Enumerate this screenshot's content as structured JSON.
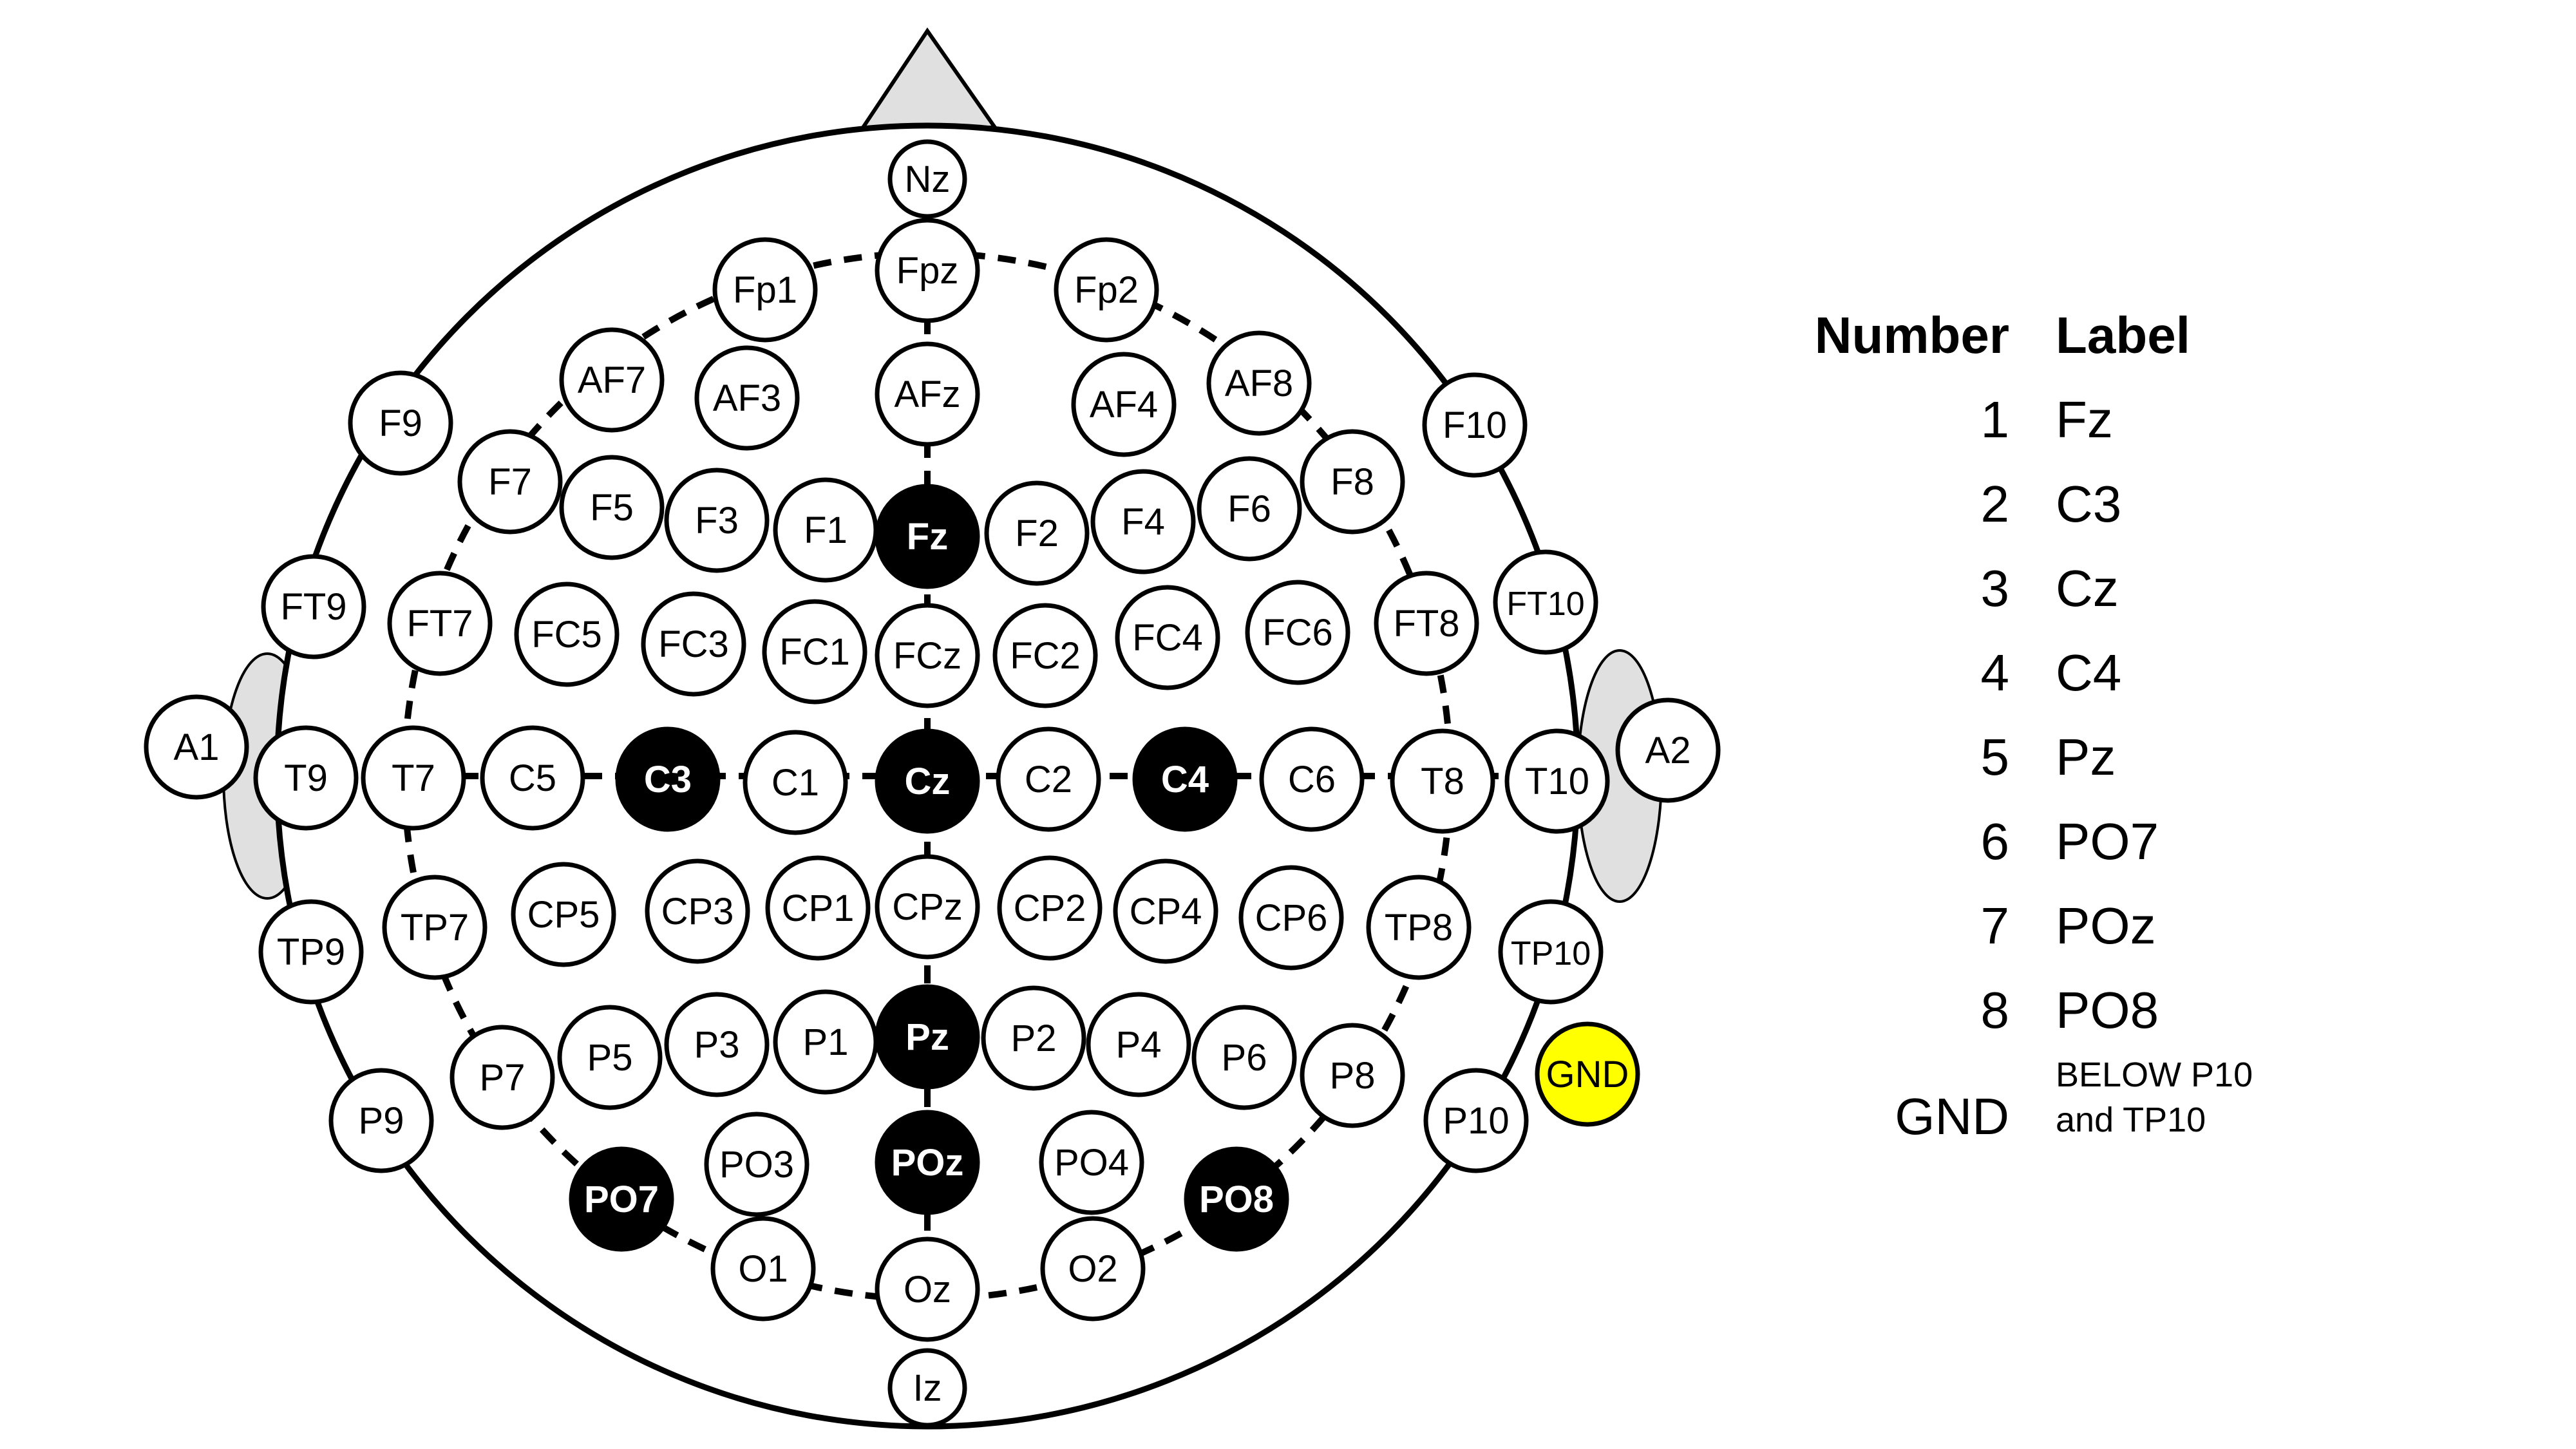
{
  "legend": {
    "header_number": "Number",
    "header_label": "Label",
    "rows": [
      {
        "number": "1",
        "label": "Fz"
      },
      {
        "number": "2",
        "label": "C3"
      },
      {
        "number": "3",
        "label": "Cz"
      },
      {
        "number": "4",
        "label": "C4"
      },
      {
        "number": "5",
        "label": "Pz"
      },
      {
        "number": "6",
        "label": "PO7"
      },
      {
        "number": "7",
        "label": "POz"
      },
      {
        "number": "8",
        "label": "PO8"
      }
    ],
    "gnd_number": "GND",
    "gnd_label": "BELOW P10 and TP10"
  },
  "colors": {
    "outline": "#000000",
    "ear_fill": "#e0e0e0",
    "nose_fill": "#e0e0e0",
    "electrode_fill": "#ffffff",
    "active_fill": "#000000",
    "ground_fill": "#ffff00"
  },
  "electrodes": {
    "Nz": "Nz",
    "Fpz": "Fpz",
    "Fp1": "Fp1",
    "Fp2": "Fp2",
    "AF7": "AF7",
    "AF3": "AF3",
    "AFz": "AFz",
    "AF4": "AF4",
    "AF8": "AF8",
    "F9": "F9",
    "F7": "F7",
    "F5": "F5",
    "F3": "F3",
    "F1": "F1",
    "Fz": "Fz",
    "F2": "F2",
    "F4": "F4",
    "F6": "F6",
    "F8": "F8",
    "F10": "F10",
    "FT9": "FT9",
    "FT7": "FT7",
    "FC5": "FC5",
    "FC3": "FC3",
    "FC1": "FC1",
    "FCz": "FCz",
    "FC2": "FC2",
    "FC4": "FC4",
    "FC6": "FC6",
    "FT8": "FT8",
    "FT10": "FT10",
    "A1": "A1",
    "T9": "T9",
    "T7": "T7",
    "C5": "C5",
    "C3": "C3",
    "C1": "C1",
    "Cz": "Cz",
    "C2": "C2",
    "C4": "C4",
    "C6": "C6",
    "T8": "T8",
    "T10": "T10",
    "A2": "A2",
    "TP9": "TP9",
    "TP7": "TP7",
    "CP5": "CP5",
    "CP3": "CP3",
    "CP1": "CP1",
    "CPz": "CPz",
    "CP2": "CP2",
    "CP4": "CP4",
    "CP6": "CP6",
    "TP8": "TP8",
    "TP10": "TP10",
    "P9": "P9",
    "P7": "P7",
    "P5": "P5",
    "P3": "P3",
    "P1": "P1",
    "Pz": "Pz",
    "P2": "P2",
    "P4": "P4",
    "P6": "P6",
    "P8": "P8",
    "P10": "P10",
    "GND": "GND",
    "PO7": "PO7",
    "PO3": "PO3",
    "POz": "POz",
    "PO4": "PO4",
    "PO8": "PO8",
    "O1": "O1",
    "Oz": "Oz",
    "O2": "O2",
    "Iz": "Iz"
  }
}
